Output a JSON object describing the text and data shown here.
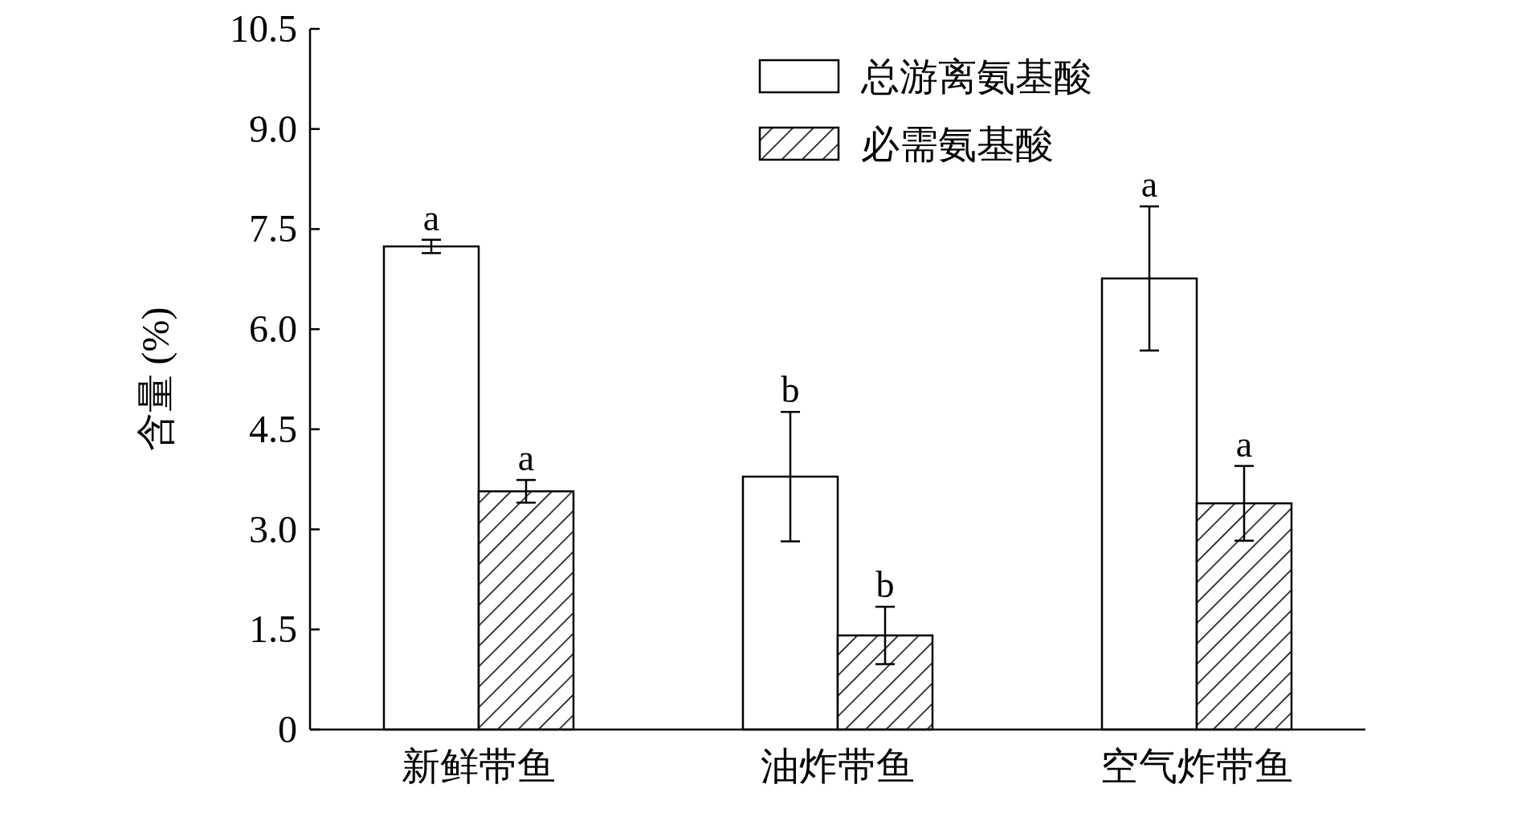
{
  "chart_data": {
    "type": "bar",
    "ylabel": "含量 (%)",
    "categories": [
      "新鲜带鱼",
      "油炸带鱼",
      "空气炸带鱼"
    ],
    "series": [
      {
        "name": "总游离氨基酸",
        "color": "#ffffff",
        "values": [
          7.24,
          3.79,
          6.76
        ],
        "errors": [
          0.1,
          0.97,
          1.08
        ],
        "value_labels": [
          "a",
          "b",
          "a"
        ]
      },
      {
        "name": "必需氨基酸",
        "color": "#000000",
        "values": [
          3.57,
          1.41,
          3.39
        ],
        "errors": [
          0.17,
          0.43,
          0.56
        ],
        "value_labels": [
          "a",
          "b",
          "a"
        ]
      }
    ],
    "ylim": [
      0,
      10.5
    ],
    "yticks": [
      {
        "value": 0,
        "label": "0"
      },
      {
        "value": 1.5,
        "label": "1.5"
      },
      {
        "value": 3,
        "label": "3.0"
      },
      {
        "value": 4.5,
        "label": "4.5"
      },
      {
        "value": 6,
        "label": "6.0"
      },
      {
        "value": 7.5,
        "label": "7.5"
      },
      {
        "value": 9,
        "label": "9.0"
      },
      {
        "value": 10.5,
        "label": "10.5"
      }
    ],
    "legend": "top right",
    "grid": false
  }
}
